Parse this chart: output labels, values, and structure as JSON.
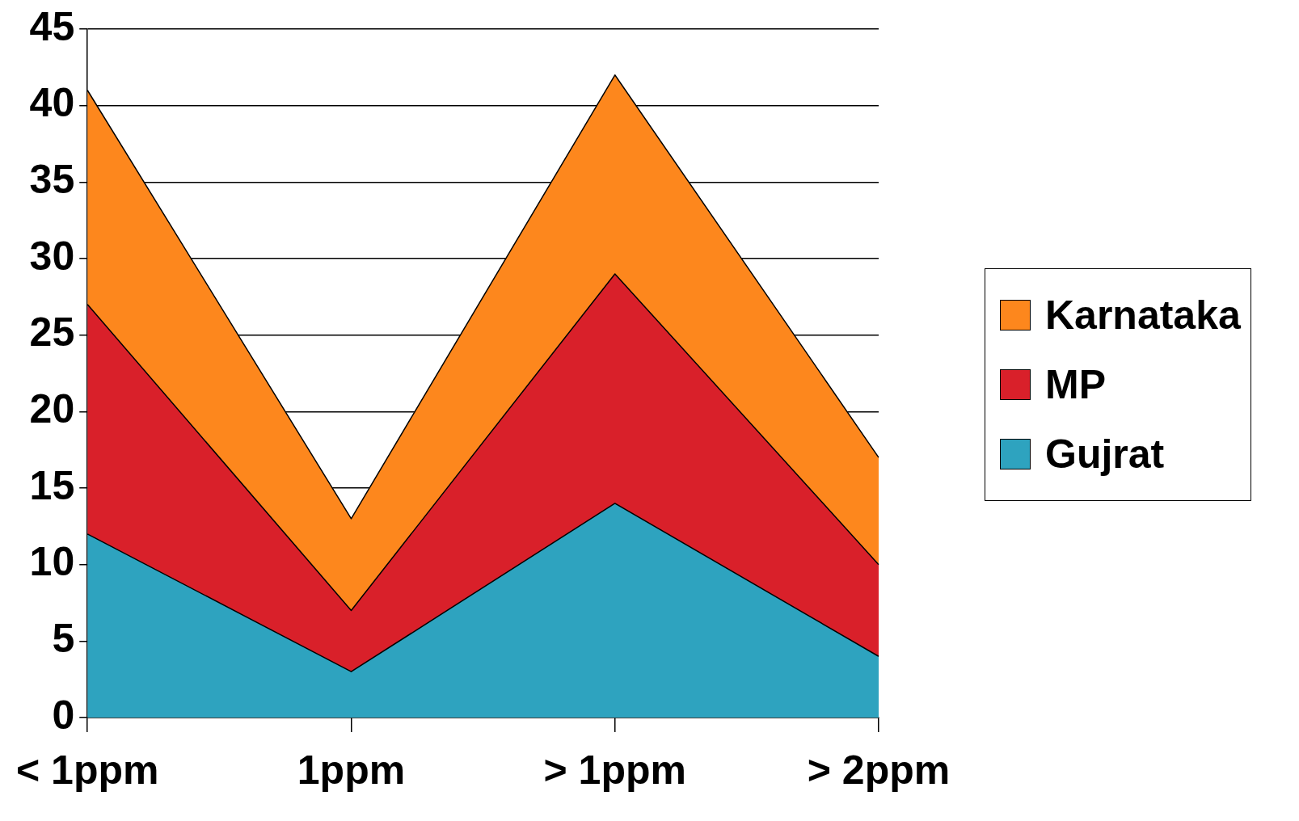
{
  "chart_data": {
    "type": "area",
    "stacked": true,
    "categories": [
      "< 1ppm",
      "1ppm",
      "> 1ppm",
      "> 2ppm"
    ],
    "series": [
      {
        "name": "Gujrat",
        "color": "#2ea3bf",
        "values": [
          12,
          3,
          14,
          4
        ]
      },
      {
        "name": "MP",
        "color": "#d9202a",
        "values": [
          15,
          4,
          15,
          6
        ]
      },
      {
        "name": "Karnataka",
        "color": "#fd871d",
        "values": [
          14,
          6,
          13,
          7
        ]
      }
    ],
    "ylim": [
      0,
      45
    ],
    "yticks": [
      0,
      5,
      10,
      15,
      20,
      25,
      30,
      35,
      40,
      45
    ],
    "grid": "y",
    "legend": "right"
  }
}
